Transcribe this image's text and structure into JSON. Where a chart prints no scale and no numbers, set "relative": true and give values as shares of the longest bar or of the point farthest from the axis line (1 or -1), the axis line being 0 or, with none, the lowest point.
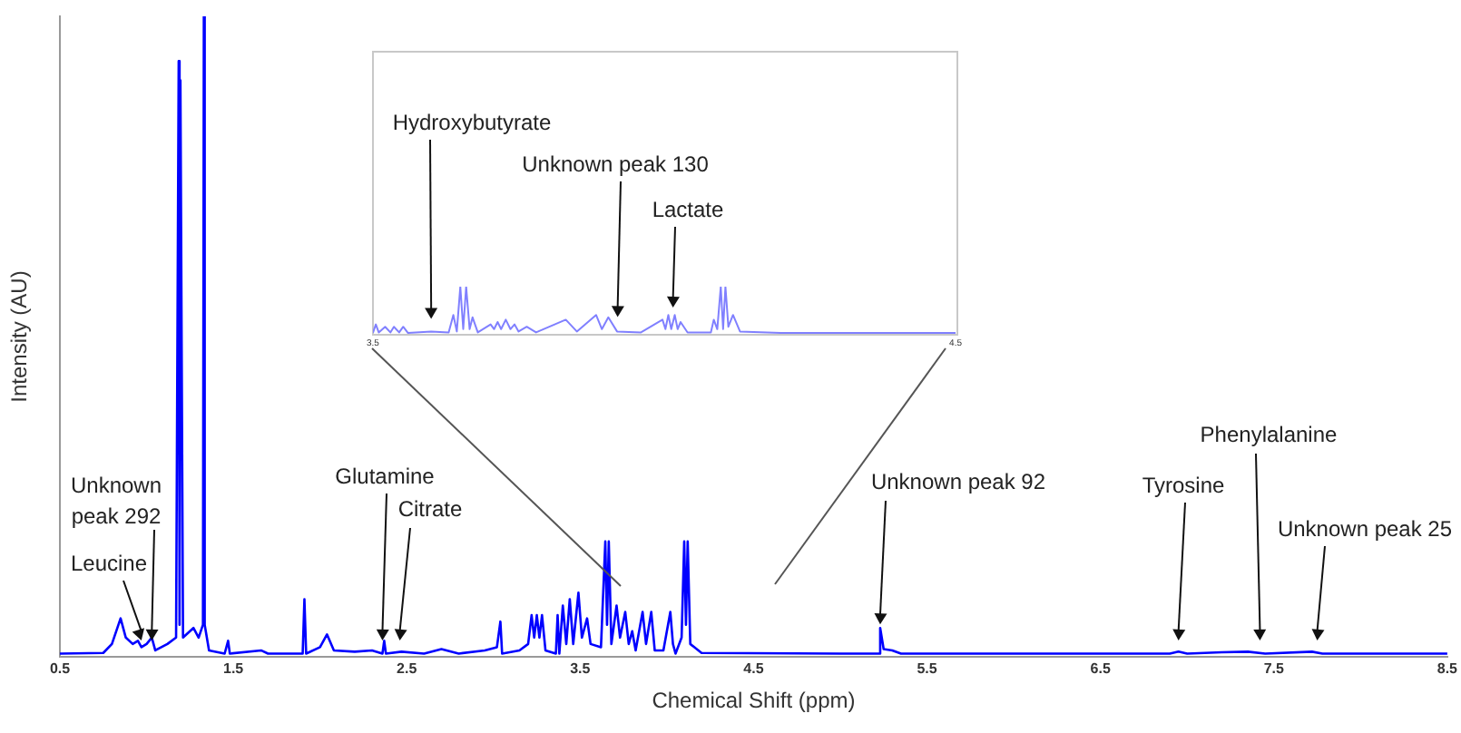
{
  "chart_data": [
    {
      "type": "line",
      "xlabel": "Chemical Shift (ppm)",
      "ylabel": "Intensity (AU)",
      "relative": true,
      "color": "#0000ff",
      "xlim": [
        0.5,
        8.5
      ],
      "xticks": [
        0.5,
        1.5,
        2.5,
        3.5,
        4.5,
        5.5,
        6.5,
        7.5,
        8.5
      ],
      "x": [
        0.5,
        0.75,
        0.8,
        0.85,
        0.88,
        0.92,
        0.95,
        0.97,
        1.0,
        1.03,
        1.05,
        1.12,
        1.17,
        1.185,
        1.19,
        1.195,
        1.21,
        1.27,
        1.3,
        1.325,
        1.33,
        1.335,
        1.36,
        1.45,
        1.47,
        1.48,
        1.66,
        1.7,
        1.9,
        1.91,
        1.92,
        2.0,
        2.04,
        2.08,
        2.2,
        2.3,
        2.36,
        2.37,
        2.38,
        2.47,
        2.6,
        2.7,
        2.8,
        2.95,
        3.02,
        3.04,
        3.05,
        3.15,
        3.2,
        3.22,
        3.235,
        3.25,
        3.265,
        3.28,
        3.3,
        3.36,
        3.37,
        3.38,
        3.4,
        3.42,
        3.44,
        3.46,
        3.49,
        3.51,
        3.54,
        3.56,
        3.62,
        3.645,
        3.655,
        3.665,
        3.68,
        3.71,
        3.73,
        3.76,
        3.78,
        3.8,
        3.82,
        3.86,
        3.88,
        3.91,
        3.93,
        3.98,
        4.02,
        4.035,
        4.05,
        4.085,
        4.1,
        4.11,
        4.12,
        4.135,
        4.2,
        5.0,
        5.22,
        5.23,
        5.25,
        5.3,
        5.35,
        5.5,
        6.9,
        6.95,
        7.0,
        7.2,
        7.35,
        7.45,
        7.72,
        7.78,
        8.5
      ],
      "values": [
        0.005,
        0.006,
        0.02,
        0.06,
        0.03,
        0.02,
        0.025,
        0.015,
        0.02,
        0.03,
        0.01,
        0.02,
        0.03,
        0.93,
        0.05,
        0.9,
        0.03,
        0.045,
        0.03,
        0.05,
        1.0,
        0.05,
        0.01,
        0.005,
        0.025,
        0.005,
        0.01,
        0.005,
        0.005,
        0.09,
        0.005,
        0.015,
        0.035,
        0.01,
        0.008,
        0.01,
        0.005,
        0.025,
        0.005,
        0.008,
        0.005,
        0.012,
        0.005,
        0.01,
        0.015,
        0.055,
        0.005,
        0.01,
        0.02,
        0.065,
        0.03,
        0.065,
        0.03,
        0.065,
        0.01,
        0.005,
        0.065,
        0.005,
        0.08,
        0.02,
        0.09,
        0.02,
        0.1,
        0.03,
        0.06,
        0.02,
        0.015,
        0.18,
        0.05,
        0.18,
        0.02,
        0.08,
        0.03,
        0.07,
        0.02,
        0.04,
        0.01,
        0.07,
        0.02,
        0.07,
        0.01,
        0.01,
        0.07,
        0.02,
        0.005,
        0.03,
        0.18,
        0.05,
        0.18,
        0.02,
        0.006,
        0.005,
        0.005,
        0.045,
        0.012,
        0.01,
        0.005,
        0.005,
        0.005,
        0.008,
        0.005,
        0.007,
        0.008,
        0.005,
        0.008,
        0.005,
        0.005
      ],
      "annotations": [
        {
          "text": "Unknown\npeak 292",
          "x": 1.03,
          "y": 0.02
        },
        {
          "text": "Leucine",
          "x": 0.97,
          "y": 0.02
        },
        {
          "text": "Glutamine",
          "x": 2.36,
          "y": 0.02
        },
        {
          "text": "Citrate",
          "x": 2.46,
          "y": 0.02
        },
        {
          "text": "Unknown peak 92",
          "x": 5.23,
          "y": 0.045
        },
        {
          "text": "Tyrosine",
          "x": 6.95,
          "y": 0.02
        },
        {
          "text": "Phenylalanine",
          "x": 7.42,
          "y": 0.02
        },
        {
          "text": "Unknown peak 25",
          "x": 7.75,
          "y": 0.02
        }
      ]
    },
    {
      "type": "line",
      "relative": true,
      "color": "#8080ff",
      "xlim": [
        3.5,
        4.5
      ],
      "xticks": [
        3.5,
        4.5
      ],
      "x": [
        3.5,
        3.505,
        3.51,
        3.521,
        3.53,
        3.536,
        3.545,
        3.552,
        3.56,
        3.6,
        3.63,
        3.638,
        3.644,
        3.65,
        3.655,
        3.66,
        3.666,
        3.671,
        3.68,
        3.702,
        3.708,
        3.714,
        3.72,
        3.728,
        3.736,
        3.743,
        3.75,
        3.764,
        3.78,
        3.831,
        3.85,
        3.883,
        3.893,
        3.904,
        3.919,
        3.96,
        3.997,
        4.002,
        4.007,
        4.012,
        4.018,
        4.023,
        4.028,
        4.04,
        4.08,
        4.085,
        4.091,
        4.097,
        4.101,
        4.105,
        4.11,
        4.118,
        4.13,
        4.2,
        4.5
      ],
      "values": [
        0.02,
        0.2,
        0.03,
        0.15,
        0.03,
        0.15,
        0.03,
        0.15,
        0.02,
        0.05,
        0.03,
        0.4,
        0.05,
        1.0,
        0.1,
        1.0,
        0.1,
        0.35,
        0.03,
        0.2,
        0.1,
        0.25,
        0.1,
        0.3,
        0.1,
        0.2,
        0.05,
        0.15,
        0.03,
        0.3,
        0.05,
        0.4,
        0.1,
        0.35,
        0.05,
        0.03,
        0.3,
        0.1,
        0.4,
        0.1,
        0.4,
        0.1,
        0.25,
        0.03,
        0.03,
        0.3,
        0.1,
        1.0,
        0.1,
        1.0,
        0.15,
        0.4,
        0.05,
        0.02,
        0.02
      ],
      "annotations": [
        {
          "text": "Hydroxybutyrate",
          "x": 3.6,
          "y": 0.24
        },
        {
          "text": "Unknown peak 130",
          "x": 3.92,
          "y": 0.28
        },
        {
          "text": "Lactate",
          "x": 4.015,
          "y": 0.48
        }
      ]
    }
  ]
}
